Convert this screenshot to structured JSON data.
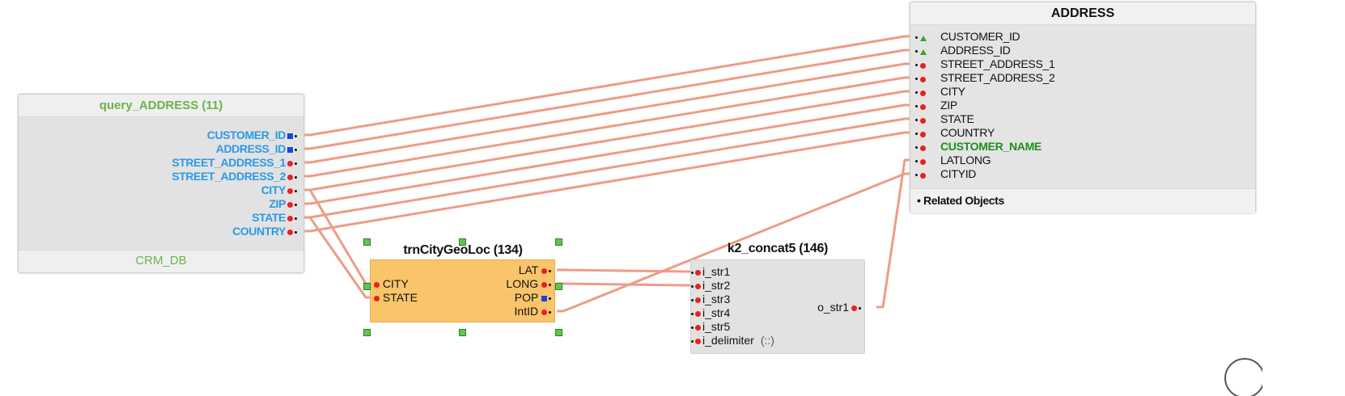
{
  "nodes": {
    "query": {
      "title": "query_ADDRESS (11)",
      "footer": "CRM_DB",
      "ports": [
        {
          "label": "CUSTOMER_ID",
          "pin": "square"
        },
        {
          "label": "ADDRESS_ID",
          "pin": "square"
        },
        {
          "label": "STREET_ADDRESS_1",
          "pin": "dot"
        },
        {
          "label": "STREET_ADDRESS_2",
          "pin": "dot"
        },
        {
          "label": "CITY",
          "pin": "dot"
        },
        {
          "label": "ZIP",
          "pin": "dot"
        },
        {
          "label": "STATE",
          "pin": "dot"
        },
        {
          "label": "COUNTRY",
          "pin": "dot"
        }
      ]
    },
    "address": {
      "title": "ADDRESS",
      "footer": "Related Objects",
      "footer_bullet": "•",
      "ports": [
        {
          "label": "CUSTOMER_ID",
          "marker": "key",
          "highlight": false
        },
        {
          "label": "ADDRESS_ID",
          "marker": "key",
          "highlight": false
        },
        {
          "label": "STREET_ADDRESS_1",
          "marker": "dot",
          "highlight": false
        },
        {
          "label": "STREET_ADDRESS_2",
          "marker": "dot",
          "highlight": false
        },
        {
          "label": "CITY",
          "marker": "dot",
          "highlight": false
        },
        {
          "label": "ZIP",
          "marker": "dot",
          "highlight": false
        },
        {
          "label": "STATE",
          "marker": "dot",
          "highlight": false
        },
        {
          "label": "COUNTRY",
          "marker": "dot",
          "highlight": false
        },
        {
          "label": "CUSTOMER_NAME",
          "marker": "dot",
          "highlight": true
        },
        {
          "label": "LATLONG",
          "marker": "dot",
          "highlight": false
        },
        {
          "label": "CITYID",
          "marker": "dot",
          "highlight": false
        }
      ]
    },
    "trn": {
      "title": "trnCityGeoLoc (134)",
      "inputs": [
        {
          "label": "CITY",
          "pin": "dot"
        },
        {
          "label": "STATE",
          "pin": "dot"
        }
      ],
      "outputs": [
        {
          "label": "LAT",
          "pin": "dot"
        },
        {
          "label": "LONG",
          "pin": "dot"
        },
        {
          "label": "POP",
          "pin": "square"
        },
        {
          "label": "IntID",
          "pin": "dot"
        }
      ]
    },
    "k2": {
      "title": "k2_concat5 (146)",
      "inputs": [
        {
          "label": "i_str1",
          "meta": ""
        },
        {
          "label": "i_str2",
          "meta": ""
        },
        {
          "label": "i_str3",
          "meta": ""
        },
        {
          "label": "i_str4",
          "meta": ""
        },
        {
          "label": "i_str5",
          "meta": ""
        },
        {
          "label": "i_delimiter",
          "meta": "(::)"
        }
      ],
      "output": {
        "label": "o_str1"
      }
    }
  },
  "colors": {
    "wire": "#ee9c86",
    "port_text_query": "#2b9ae6",
    "title_query": "#6ab34a",
    "highlight": "#1b8f1b",
    "pin_red": "#e82020",
    "pin_blue": "#1446e0",
    "key_green": "#2ea82e",
    "transform_fill": "#f9c46a",
    "handle": "#5dc84b"
  },
  "connections": [
    {
      "from": "query.CUSTOMER_ID",
      "to": "address.CUSTOMER_ID"
    },
    {
      "from": "query.ADDRESS_ID",
      "to": "address.ADDRESS_ID"
    },
    {
      "from": "query.STREET_ADDRESS_1",
      "to": "address.STREET_ADDRESS_1"
    },
    {
      "from": "query.STREET_ADDRESS_2",
      "to": "address.STREET_ADDRESS_2"
    },
    {
      "from": "query.CITY",
      "to": "address.CITY"
    },
    {
      "from": "query.ZIP",
      "to": "address.ZIP"
    },
    {
      "from": "query.STATE",
      "to": "address.STATE"
    },
    {
      "from": "query.COUNTRY",
      "to": "address.COUNTRY"
    },
    {
      "from": "query.CITY",
      "to": "trn.CITY"
    },
    {
      "from": "query.STATE",
      "to": "trn.STATE"
    },
    {
      "from": "trn.LAT",
      "to": "k2.i_str1"
    },
    {
      "from": "trn.LONG",
      "to": "k2.i_str2"
    },
    {
      "from": "trn.IntID",
      "to": "address.CITYID"
    },
    {
      "from": "k2.o_str1",
      "to": "address.LATLONG"
    }
  ]
}
